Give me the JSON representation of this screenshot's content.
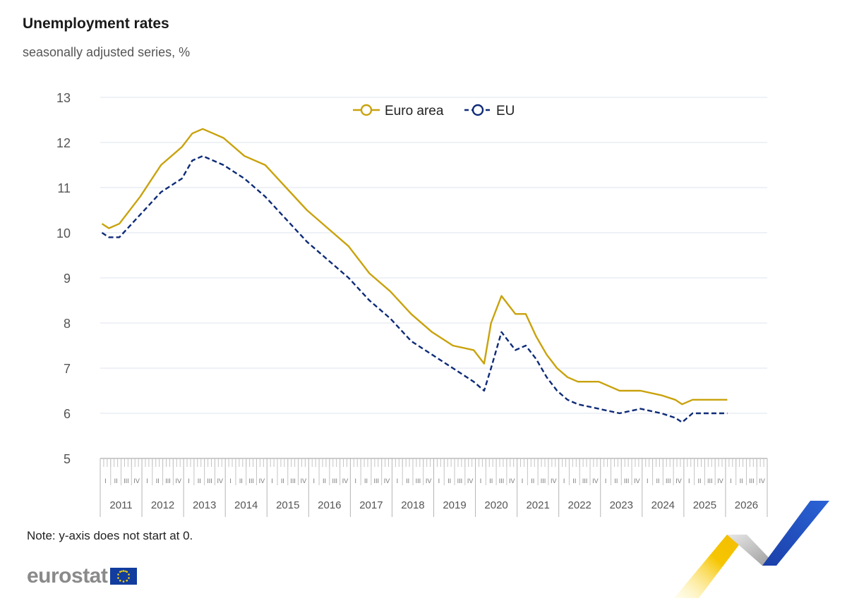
{
  "header": {
    "title": "Unemployment rates",
    "subtitle": "seasonally adjusted series, %"
  },
  "note": "Note: y-axis does not start at 0.",
  "logo": {
    "text": "eurostat"
  },
  "colors": {
    "euro_area": "#c9a20c",
    "eu": "#0e2b78",
    "grid": "#dde3ec",
    "axis_text": "#555555"
  },
  "chart_data": {
    "type": "line",
    "title": "Unemployment rates",
    "subtitle": "seasonally adjusted series, %",
    "x_axis": {
      "unit": "month",
      "start": "2011-01",
      "year_labels": [
        "2011",
        "2012",
        "2013",
        "2014",
        "2015",
        "2016",
        "2017",
        "2018",
        "2019",
        "2020",
        "2021",
        "2022",
        "2023",
        "2024",
        "2025",
        "2026"
      ],
      "quarter_labels": [
        "I",
        "II",
        "III",
        "IV"
      ]
    },
    "ylim": [
      5,
      13
    ],
    "yticks": [
      5,
      6,
      7,
      8,
      9,
      10,
      11,
      12,
      13
    ],
    "grid": true,
    "legend_position": "top-center",
    "series": [
      {
        "name": "Euro area",
        "color": "#c9a20c",
        "style": "solid",
        "keypoints": [
          [
            "2011-01",
            10.2
          ],
          [
            "2011-03",
            10.1
          ],
          [
            "2011-06",
            10.2
          ],
          [
            "2011-12",
            10.8
          ],
          [
            "2012-06",
            11.5
          ],
          [
            "2012-12",
            11.9
          ],
          [
            "2013-03",
            12.2
          ],
          [
            "2013-06",
            12.3
          ],
          [
            "2013-09",
            12.2
          ],
          [
            "2013-12",
            12.1
          ],
          [
            "2014-06",
            11.7
          ],
          [
            "2014-12",
            11.5
          ],
          [
            "2015-06",
            11.0
          ],
          [
            "2015-12",
            10.5
          ],
          [
            "2016-06",
            10.1
          ],
          [
            "2016-12",
            9.7
          ],
          [
            "2017-06",
            9.1
          ],
          [
            "2017-12",
            8.7
          ],
          [
            "2018-06",
            8.2
          ],
          [
            "2018-12",
            7.8
          ],
          [
            "2019-06",
            7.5
          ],
          [
            "2019-12",
            7.4
          ],
          [
            "2020-03",
            7.1
          ],
          [
            "2020-05",
            8.0
          ],
          [
            "2020-08",
            8.6
          ],
          [
            "2020-10",
            8.4
          ],
          [
            "2020-12",
            8.2
          ],
          [
            "2021-03",
            8.2
          ],
          [
            "2021-06",
            7.7
          ],
          [
            "2021-09",
            7.3
          ],
          [
            "2021-12",
            7.0
          ],
          [
            "2022-03",
            6.8
          ],
          [
            "2022-06",
            6.7
          ],
          [
            "2022-12",
            6.7
          ],
          [
            "2023-06",
            6.5
          ],
          [
            "2023-12",
            6.5
          ],
          [
            "2024-06",
            6.4
          ],
          [
            "2024-10",
            6.3
          ],
          [
            "2024-12",
            6.2
          ],
          [
            "2025-03",
            6.3
          ],
          [
            "2025-09",
            6.3
          ],
          [
            "2025-12",
            6.3
          ],
          [
            "2026-01",
            6.3
          ]
        ]
      },
      {
        "name": "EU",
        "color": "#0e2b78",
        "style": "dashed",
        "keypoints": [
          [
            "2011-01",
            10.0
          ],
          [
            "2011-03",
            9.9
          ],
          [
            "2011-06",
            9.9
          ],
          [
            "2011-12",
            10.4
          ],
          [
            "2012-06",
            10.9
          ],
          [
            "2012-12",
            11.2
          ],
          [
            "2013-03",
            11.6
          ],
          [
            "2013-06",
            11.7
          ],
          [
            "2013-09",
            11.6
          ],
          [
            "2013-12",
            11.5
          ],
          [
            "2014-06",
            11.2
          ],
          [
            "2014-12",
            10.8
          ],
          [
            "2015-06",
            10.3
          ],
          [
            "2015-12",
            9.8
          ],
          [
            "2016-06",
            9.4
          ],
          [
            "2016-12",
            9.0
          ],
          [
            "2017-06",
            8.5
          ],
          [
            "2017-12",
            8.1
          ],
          [
            "2018-06",
            7.6
          ],
          [
            "2018-12",
            7.3
          ],
          [
            "2019-06",
            7.0
          ],
          [
            "2019-12",
            6.7
          ],
          [
            "2020-03",
            6.5
          ],
          [
            "2020-05",
            7.0
          ],
          [
            "2020-08",
            7.8
          ],
          [
            "2020-10",
            7.6
          ],
          [
            "2020-12",
            7.4
          ],
          [
            "2021-03",
            7.5
          ],
          [
            "2021-06",
            7.2
          ],
          [
            "2021-09",
            6.8
          ],
          [
            "2021-12",
            6.5
          ],
          [
            "2022-03",
            6.3
          ],
          [
            "2022-06",
            6.2
          ],
          [
            "2022-12",
            6.1
          ],
          [
            "2023-06",
            6.0
          ],
          [
            "2023-12",
            6.1
          ],
          [
            "2024-06",
            6.0
          ],
          [
            "2024-10",
            5.9
          ],
          [
            "2024-12",
            5.8
          ],
          [
            "2025-03",
            6.0
          ],
          [
            "2025-09",
            6.0
          ],
          [
            "2025-12",
            6.0
          ],
          [
            "2026-01",
            6.0
          ]
        ]
      }
    ]
  }
}
